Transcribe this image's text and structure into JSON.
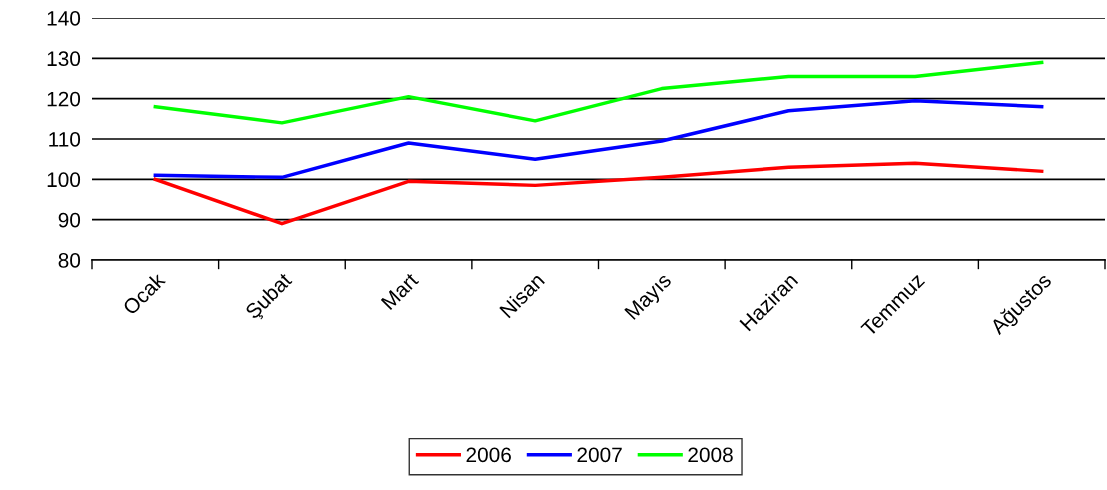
{
  "chart_data": {
    "type": "line",
    "categories": [
      "Ocak",
      "Şubat",
      "Mart",
      "Nisan",
      "Mayıs",
      "Haziran",
      "Temmuz",
      "Ağustos"
    ],
    "series": [
      {
        "name": "2006",
        "color": "#ff0000",
        "values": [
          100,
          89,
          99.5,
          98.5,
          100.5,
          103,
          104,
          102
        ]
      },
      {
        "name": "2007",
        "color": "#0000ff",
        "values": [
          101,
          100.5,
          109,
          105,
          109.5,
          117,
          119.5,
          118
        ]
      },
      {
        "name": "2008",
        "color": "#00ff00",
        "values": [
          118,
          114,
          120.5,
          114.5,
          122.5,
          125.5,
          125.5,
          129
        ]
      }
    ],
    "ylim": [
      80,
      140
    ],
    "yticks": [
      80,
      90,
      100,
      110,
      120,
      130,
      140
    ],
    "grid": "y",
    "legend": "bottom",
    "marker": "none",
    "line_style": "solid"
  }
}
